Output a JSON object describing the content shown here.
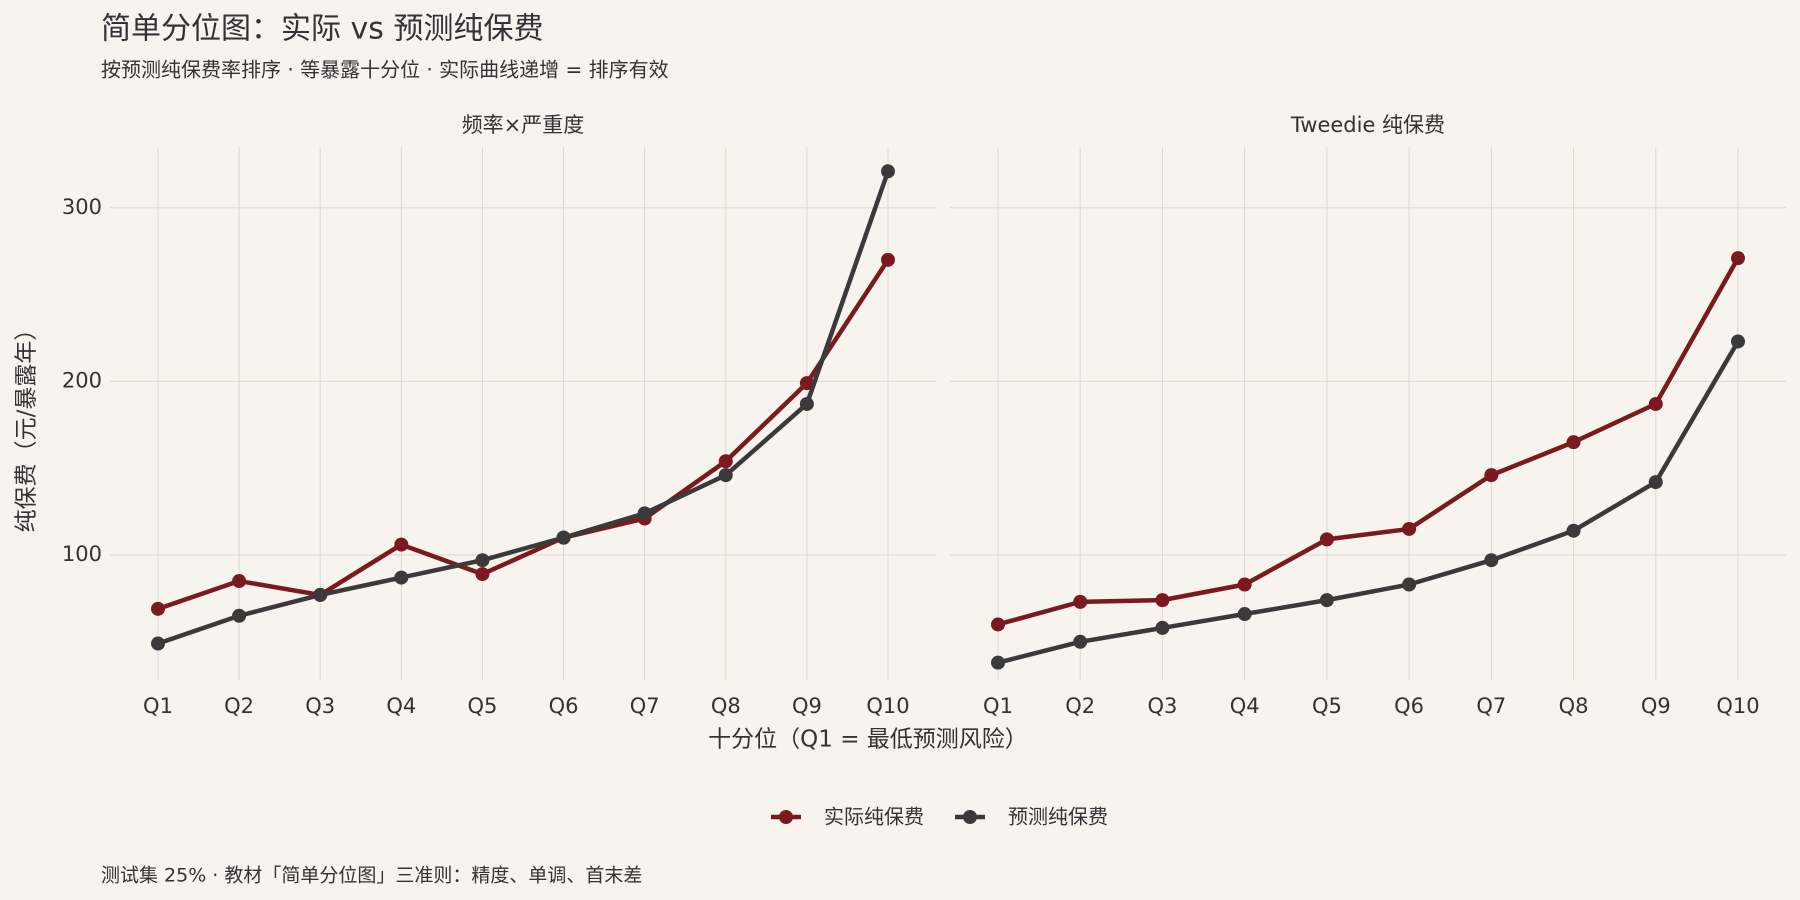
{
  "title": "简单分位图：实际 vs 预测纯保费",
  "subtitle": "按预测纯保费率排序 ·  等暴露十分位 ·  实际曲线递增 = 排序有效",
  "x_label": "十分位（Q1 = 最低预测风险）",
  "y_label": "纯保费（元/暴露年）",
  "caption": "测试集 25% ·  教材「简单分位图」三准则：精度、单调、首末差",
  "chart_data": [
    {
      "type": "line",
      "title": "频率×严重度",
      "categories": [
        "Q1",
        "Q2",
        "Q3",
        "Q4",
        "Q5",
        "Q6",
        "Q7",
        "Q8",
        "Q9",
        "Q10"
      ],
      "series": [
        {
          "name": "实际纯保费",
          "color": "#7a1a20",
          "values": [
            69,
            85,
            77,
            106,
            89,
            110,
            121,
            154,
            199,
            270
          ]
        },
        {
          "name": "预测纯保费",
          "color": "#3a3a38",
          "values": [
            49,
            65,
            77,
            87,
            97,
            110,
            124,
            146,
            187,
            321
          ]
        }
      ],
      "ylim": [
        28,
        335
      ],
      "yticks": [
        100,
        200,
        300
      ],
      "grid": true
    },
    {
      "type": "line",
      "title": "Tweedie 纯保费",
      "categories": [
        "Q1",
        "Q2",
        "Q3",
        "Q4",
        "Q5",
        "Q6",
        "Q7",
        "Q8",
        "Q9",
        "Q10"
      ],
      "series": [
        {
          "name": "实际纯保费",
          "color": "#7a1a20",
          "values": [
            60,
            73,
            74,
            83,
            109,
            115,
            146,
            165,
            187,
            271
          ]
        },
        {
          "name": "预测纯保费",
          "color": "#3a3a38",
          "values": [
            38,
            50,
            58,
            66,
            74,
            83,
            97,
            114,
            142,
            223
          ]
        }
      ],
      "ylim": [
        28,
        335
      ],
      "yticks": [
        100,
        200,
        300
      ],
      "grid": true
    }
  ]
}
